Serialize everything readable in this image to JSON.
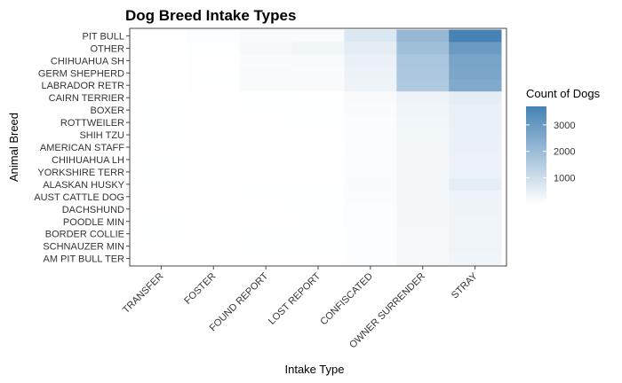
{
  "chart_data": {
    "type": "heatmap",
    "title": "Dog Breed Intake Types",
    "xlabel": "Intake Type",
    "ylabel": "Animal Breed",
    "x_categories": [
      "TRANSFER",
      "FOSTER",
      "FOUND REPORT",
      "LOST REPORT",
      "CONFISCATED",
      "OWNER SURRENDER",
      "STRAY"
    ],
    "y_categories": [
      "PIT BULL",
      "OTHER",
      "CHIHUAHUA SH",
      "GERM SHEPHERD",
      "LABRADOR RETR",
      "CAIRN TERRIER",
      "BOXER",
      "ROTTWEILER",
      "SHIH TZU",
      "AMERICAN STAFF",
      "CHIHUAHUA LH",
      "YORKSHIRE TERR",
      "ALASKAN HUSKY",
      "AUST CATTLE DOG",
      "DACHSHUND",
      "POODLE MIN",
      "BORDER COLLIE",
      "SCHNAUZER MIN",
      "AM PIT BULL TER"
    ],
    "values": [
      [
        null,
        60,
        120,
        150,
        700,
        2100,
        3700
      ],
      [
        null,
        50,
        200,
        280,
        550,
        1900,
        3000
      ],
      [
        null,
        30,
        130,
        140,
        400,
        1700,
        2700
      ],
      [
        null,
        40,
        150,
        130,
        380,
        1650,
        2650
      ],
      [
        null,
        35,
        140,
        120,
        350,
        1600,
        2550
      ],
      [
        null,
        null,
        40,
        30,
        150,
        350,
        500
      ],
      [
        20,
        10,
        50,
        40,
        120,
        300,
        450
      ],
      [
        20,
        null,
        30,
        40,
        100,
        280,
        430
      ],
      [
        20,
        null,
        35,
        30,
        110,
        260,
        420
      ],
      [
        null,
        10,
        25,
        null,
        90,
        250,
        400
      ],
      [
        20,
        null,
        30,
        30,
        100,
        250,
        390
      ],
      [
        20,
        10,
        30,
        30,
        90,
        240,
        380
      ],
      [
        null,
        null,
        30,
        20,
        120,
        250,
        500
      ],
      [
        null,
        10,
        20,
        20,
        90,
        230,
        370
      ],
      [
        null,
        null,
        25,
        20,
        80,
        220,
        350
      ],
      [
        20,
        null,
        25,
        20,
        80,
        220,
        340
      ],
      [
        20,
        null,
        20,
        20,
        70,
        200,
        330
      ],
      [
        null,
        null,
        20,
        20,
        70,
        200,
        320
      ],
      [
        null,
        null,
        15,
        15,
        60,
        180,
        300
      ]
    ],
    "legend": {
      "title": "Count of Dogs",
      "ticks": [
        1000,
        2000,
        3000
      ],
      "min": 10,
      "max": 3700,
      "low_color": "#FFFFFF",
      "high_color": "#4682B4",
      "placement": "right"
    }
  }
}
